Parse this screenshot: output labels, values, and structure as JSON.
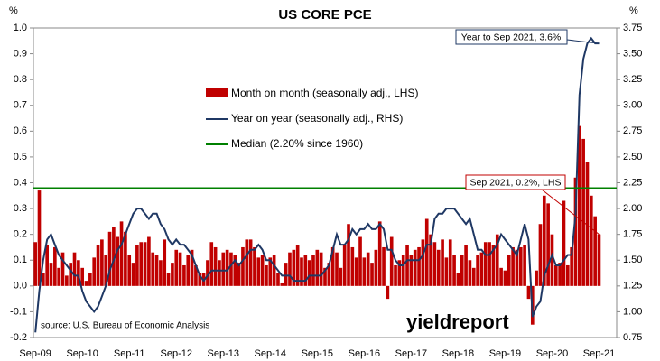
{
  "chart_data": {
    "type": "bar",
    "title": "US CORE PCE",
    "y_unit": "%",
    "y2_unit": "%",
    "categories": [
      "Sep-09",
      null,
      null,
      null,
      null,
      null,
      null,
      null,
      null,
      null,
      null,
      null,
      "Sep-10",
      null,
      null,
      null,
      null,
      null,
      null,
      null,
      null,
      null,
      null,
      null,
      "Sep-11",
      null,
      null,
      null,
      null,
      null,
      null,
      null,
      null,
      null,
      null,
      null,
      "Sep-12",
      null,
      null,
      null,
      null,
      null,
      null,
      null,
      null,
      null,
      null,
      null,
      "Sep-13",
      null,
      null,
      null,
      null,
      null,
      null,
      null,
      null,
      null,
      null,
      null,
      "Sep-14",
      null,
      null,
      null,
      null,
      null,
      null,
      null,
      null,
      null,
      null,
      null,
      "Sep-15",
      null,
      null,
      null,
      null,
      null,
      null,
      null,
      null,
      null,
      null,
      null,
      "Sep-16",
      null,
      null,
      null,
      null,
      null,
      null,
      null,
      null,
      null,
      null,
      null,
      "Sep-17",
      null,
      null,
      null,
      null,
      null,
      null,
      null,
      null,
      null,
      null,
      null,
      "Sep-18",
      null,
      null,
      null,
      null,
      null,
      null,
      null,
      null,
      null,
      null,
      null,
      "Sep-19",
      null,
      null,
      null,
      null,
      null,
      null,
      null,
      null,
      null,
      null,
      null,
      "Sep-20",
      null,
      null,
      null,
      null,
      null,
      null,
      null,
      null,
      null,
      null,
      null,
      "Sep-21"
    ],
    "series": [
      {
        "name": "Month on month (seasonally adj., LHS)",
        "type": "bar",
        "color": "#c00000",
        "values": [
          0.17,
          0.37,
          0.05,
          0.16,
          0.09,
          0.15,
          0.07,
          0.13,
          0.04,
          0.09,
          0.13,
          0.1,
          0.07,
          0.02,
          0.05,
          0.11,
          0.16,
          0.18,
          0.12,
          0.21,
          0.23,
          0.19,
          0.25,
          0.21,
          0.12,
          0.09,
          0.16,
          0.17,
          0.17,
          0.19,
          0.13,
          0.12,
          0.1,
          0.18,
          0.05,
          0.09,
          0.14,
          0.13,
          0.08,
          0.12,
          0.14,
          0.08,
          0.05,
          0.05,
          0.1,
          0.17,
          0.15,
          0.1,
          0.13,
          0.14,
          0.13,
          0.12,
          0.09,
          0.15,
          0.18,
          0.18,
          0.15,
          0.11,
          0.12,
          0.08,
          0.11,
          0.12,
          0.05,
          0.01,
          0.09,
          0.13,
          0.14,
          0.16,
          0.11,
          0.12,
          0.1,
          0.12,
          0.14,
          0.13,
          0.07,
          0.09,
          0.15,
          0.13,
          0.07,
          0.16,
          0.24,
          0.15,
          0.11,
          0.19,
          0.11,
          0.13,
          0.09,
          0.14,
          0.25,
          0.15,
          -0.05,
          0.19,
          0.08,
          0.1,
          0.12,
          0.16,
          0.12,
          0.14,
          0.15,
          0.18,
          0.26,
          0.2,
          0.17,
          0.14,
          0.18,
          0.11,
          0.18,
          0.12,
          0.05,
          0.12,
          0.16,
          0.1,
          0.07,
          0.12,
          0.13,
          0.17,
          0.17,
          0.16,
          0.2,
          0.07,
          0.06,
          0.12,
          0.15,
          0.14,
          0.15,
          0.16,
          -0.05,
          -0.15,
          0.06,
          0.24,
          0.35,
          0.32,
          0.2,
          0.08,
          0.09,
          0.33,
          0.08,
          0.15,
          0.42,
          0.62,
          0.57,
          0.48,
          0.35,
          0.27,
          0.2
        ]
      },
      {
        "name": "Year on year (seasonally adj., RHS)",
        "type": "line",
        "axis": "y2",
        "color": "#1f3864",
        "values": [
          0.8,
          1.2,
          1.5,
          1.7,
          1.75,
          1.65,
          1.55,
          1.5,
          1.45,
          1.4,
          1.35,
          1.35,
          1.2,
          1.1,
          1.05,
          1.0,
          1.05,
          1.15,
          1.25,
          1.4,
          1.5,
          1.6,
          1.65,
          1.75,
          1.85,
          1.95,
          2.0,
          2.0,
          1.95,
          1.9,
          1.95,
          1.95,
          1.85,
          1.8,
          1.7,
          1.65,
          1.7,
          1.65,
          1.65,
          1.6,
          1.55,
          1.45,
          1.35,
          1.3,
          1.35,
          1.4,
          1.4,
          1.4,
          1.4,
          1.4,
          1.45,
          1.5,
          1.45,
          1.5,
          1.55,
          1.6,
          1.6,
          1.65,
          1.6,
          1.5,
          1.5,
          1.45,
          1.4,
          1.35,
          1.35,
          1.35,
          1.3,
          1.3,
          1.3,
          1.3,
          1.35,
          1.35,
          1.35,
          1.35,
          1.4,
          1.45,
          1.6,
          1.75,
          1.65,
          1.65,
          1.7,
          1.8,
          1.75,
          1.8,
          1.8,
          1.85,
          1.8,
          1.8,
          1.85,
          1.8,
          1.6,
          1.6,
          1.5,
          1.45,
          1.45,
          1.5,
          1.5,
          1.5,
          1.5,
          1.55,
          1.65,
          1.65,
          1.9,
          1.95,
          1.95,
          2.0,
          2.0,
          2.0,
          1.95,
          1.9,
          1.85,
          1.9,
          1.75,
          1.6,
          1.6,
          1.55,
          1.55,
          1.6,
          1.65,
          1.75,
          1.7,
          1.65,
          1.6,
          1.55,
          1.7,
          1.85,
          1.7,
          0.95,
          1.05,
          1.1,
          1.35,
          1.45,
          1.55,
          1.45,
          1.45,
          1.5,
          1.55,
          1.55,
          1.95,
          3.1,
          3.45,
          3.6,
          3.65,
          3.6,
          3.6
        ]
      }
    ],
    "median": {
      "name": "Median (2.20% since 1960)",
      "color": "#008000",
      "value": 2.2,
      "axis": "y2"
    },
    "ylim": [
      -0.2,
      1.0
    ],
    "yticks": [
      -0.2,
      -0.1,
      {
        "value": 0,
        "label": "0.0"
      },
      0.1,
      0.2,
      0.3,
      0.4,
      0.5,
      0.6,
      0.7,
      0.8,
      0.9,
      {
        "value": 1,
        "label": "1.0"
      }
    ],
    "y2lim": [
      0.75,
      3.75
    ],
    "y2ticks": [
      0.75,
      {
        "value": 1,
        "label": "1.00"
      },
      1.25,
      {
        "value": 1.5,
        "label": "1.50"
      },
      1.75,
      {
        "value": 2,
        "label": "2.00"
      },
      2.25,
      {
        "value": 2.5,
        "label": "2.50"
      },
      2.75,
      {
        "value": 3,
        "label": "3.00"
      },
      3.25,
      {
        "value": 3.5,
        "label": "3.50"
      },
      3.75
    ],
    "annotations": [
      "Year to Sep 2021, 3.6%",
      "Sep 2021, 0.2%, LHS"
    ],
    "source": "source: U.S. Bureau of Economic Analysis",
    "logo": "yieldreport"
  }
}
